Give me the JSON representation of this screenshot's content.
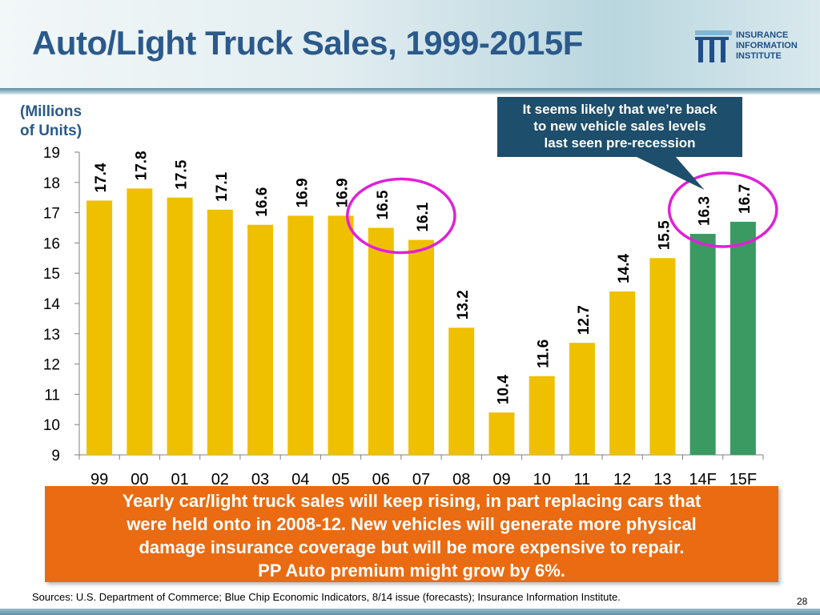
{
  "title": "Auto/Light Truck Sales, 1999-2015F",
  "logo": {
    "lines": [
      "INSURANCE",
      "INFORMATION",
      "INSTITUTE"
    ],
    "color": "#1e4f8c"
  },
  "y_axis_label": [
    "(Millions",
    "of Units)"
  ],
  "callout": {
    "lines": [
      "It seems likely that we’re back",
      "to new vehicle sales levels",
      "last seen pre-recession"
    ]
  },
  "chart_data": {
    "type": "bar",
    "title": "Auto/Light Truck Sales, 1999-2015F",
    "ylabel": "(Millions of Units)",
    "xlabel": "",
    "ylim": [
      9,
      19
    ],
    "yticks": [
      9,
      10,
      11,
      12,
      13,
      14,
      15,
      16,
      17,
      18,
      19
    ],
    "categories": [
      "99",
      "00",
      "01",
      "02",
      "03",
      "04",
      "05",
      "06",
      "07",
      "08",
      "09",
      "10",
      "11",
      "12",
      "13",
      "14F",
      "15F"
    ],
    "values": [
      17.4,
      17.8,
      17.5,
      17.1,
      16.6,
      16.9,
      16.9,
      16.5,
      16.1,
      13.2,
      10.4,
      11.6,
      12.7,
      14.4,
      15.5,
      16.3,
      16.7
    ],
    "labels": [
      "17.4",
      "17.8",
      "17.5",
      "17.1",
      "16.6",
      "16.9",
      "16.9",
      "16.5",
      "16.1",
      "13.2",
      "10.4",
      "11.6",
      "12.7",
      "14.4",
      "15.5",
      "16.3",
      "16.7"
    ],
    "bar_colors": [
      "#eec000",
      "#eec000",
      "#eec000",
      "#eec000",
      "#eec000",
      "#eec000",
      "#eec000",
      "#eec000",
      "#eec000",
      "#eec000",
      "#eec000",
      "#eec000",
      "#eec000",
      "#eec000",
      "#eec000",
      "#3a9a62",
      "#3a9a62"
    ],
    "highlighted_categories": [
      [
        "06",
        "07"
      ],
      [
        "14F",
        "15F"
      ]
    ],
    "highlight_color": "#e020d8"
  },
  "summary_box": {
    "lines": [
      "Yearly car/light truck sales will keep rising, in part replacing cars that",
      "were held onto in 2008-12. New vehicles will generate more physical",
      "damage insurance coverage but will be more expensive to repair.",
      "PP Auto premium might grow by 6%."
    ]
  },
  "sources": "Sources: U.S. Department of Commerce; Blue Chip Economic Indicators, 8/14 issue (forecasts); Insurance Information Institute.",
  "page_number": "28"
}
